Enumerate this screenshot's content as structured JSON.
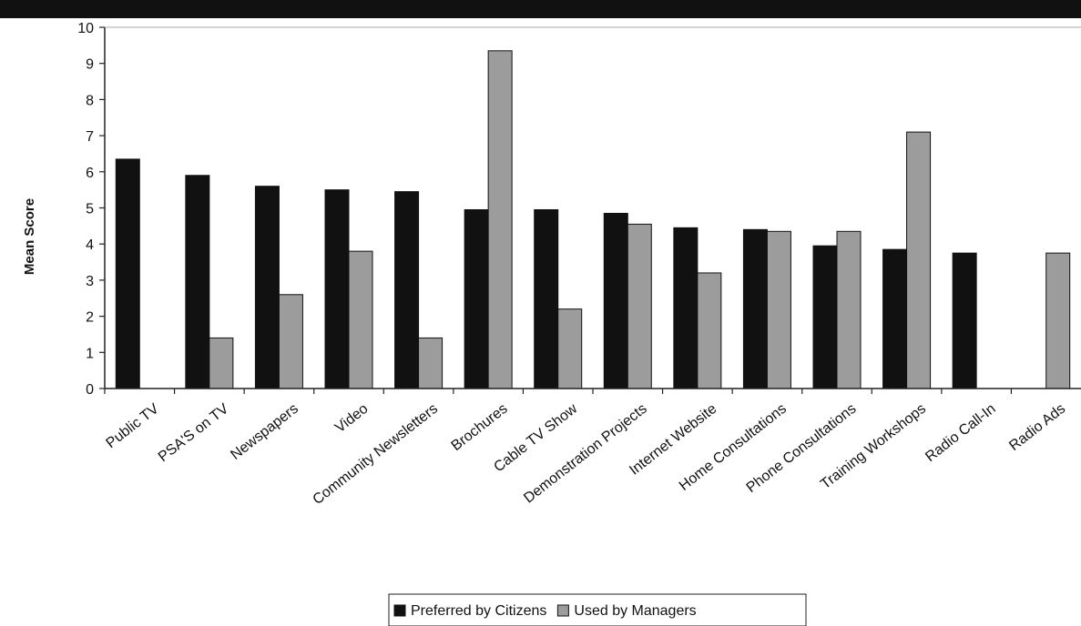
{
  "chart_data": {
    "type": "bar",
    "ylabel": "Mean Score",
    "ylim": [
      0,
      10
    ],
    "yticks": [
      0,
      1,
      2,
      3,
      4,
      5,
      6,
      7,
      8,
      9,
      10
    ],
    "grid": false,
    "legend_position": "bottom",
    "categories": [
      "Public TV",
      "PSA'S on TV",
      "Newspapers",
      "Video",
      "Community Newsletters",
      "Brochures",
      "Cable TV Show",
      "Demonstration Projects",
      "Internet Website",
      "Home Consultations",
      "Phone Consultations",
      "Training Workshops",
      "Radio Call-In",
      "Radio Ads"
    ],
    "series": [
      {
        "name": "Preferred by Citizens",
        "color": "#111111",
        "values": [
          6.35,
          5.9,
          5.6,
          5.5,
          5.45,
          4.95,
          4.95,
          4.85,
          4.45,
          4.4,
          3.95,
          3.85,
          3.75,
          null
        ]
      },
      {
        "name": "Used by Managers",
        "color": "#9c9c9c",
        "values": [
          null,
          1.4,
          2.6,
          3.8,
          1.4,
          9.35,
          2.2,
          4.55,
          3.2,
          4.35,
          4.35,
          7.1,
          null,
          3.75
        ]
      }
    ]
  }
}
